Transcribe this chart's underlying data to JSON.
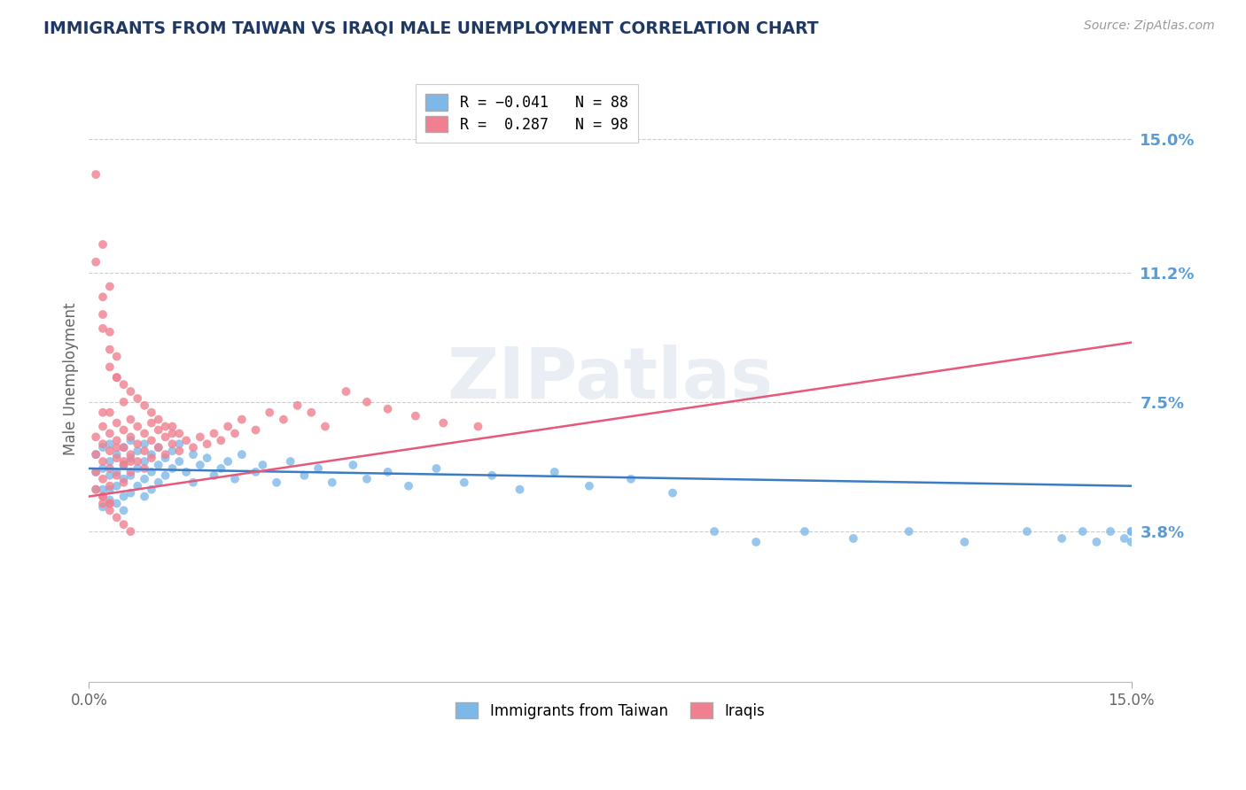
{
  "title": "IMMIGRANTS FROM TAIWAN VS IRAQI MALE UNEMPLOYMENT CORRELATION CHART",
  "source_text": "Source: ZipAtlas.com",
  "ylabel": "Male Unemployment",
  "ytick_positions": [
    0.038,
    0.075,
    0.112,
    0.15
  ],
  "ytick_labels": [
    "3.8%",
    "7.5%",
    "11.2%",
    "15.0%"
  ],
  "xlim": [
    0.0,
    0.15
  ],
  "ylim": [
    -0.005,
    0.168
  ],
  "blue_color": "#7EB8E8",
  "pink_color": "#F08090",
  "blue_line_color": "#3B7CC4",
  "pink_line_color": "#E85878",
  "background_color": "#FFFFFF",
  "grid_color": "#CCCCCC",
  "axis_label_color": "#5B9BD5",
  "title_color": "#1F3864",
  "blue_line": {
    "x0": 0.0,
    "x1": 0.15,
    "y0": 0.056,
    "y1": 0.051
  },
  "pink_line": {
    "x0": 0.0,
    "x1": 0.15,
    "y0": 0.048,
    "y1": 0.092
  },
  "blue_scatter_x": [
    0.001,
    0.001,
    0.001,
    0.002,
    0.002,
    0.002,
    0.002,
    0.003,
    0.003,
    0.003,
    0.003,
    0.003,
    0.004,
    0.004,
    0.004,
    0.004,
    0.005,
    0.005,
    0.005,
    0.005,
    0.005,
    0.006,
    0.006,
    0.006,
    0.006,
    0.007,
    0.007,
    0.007,
    0.008,
    0.008,
    0.008,
    0.008,
    0.009,
    0.009,
    0.009,
    0.01,
    0.01,
    0.01,
    0.011,
    0.011,
    0.012,
    0.012,
    0.013,
    0.013,
    0.014,
    0.015,
    0.015,
    0.016,
    0.017,
    0.018,
    0.019,
    0.02,
    0.021,
    0.022,
    0.024,
    0.025,
    0.027,
    0.029,
    0.031,
    0.033,
    0.035,
    0.038,
    0.04,
    0.043,
    0.046,
    0.05,
    0.054,
    0.058,
    0.062,
    0.067,
    0.072,
    0.078,
    0.084,
    0.09,
    0.096,
    0.103,
    0.11,
    0.118,
    0.126,
    0.135,
    0.14,
    0.143,
    0.145,
    0.147,
    0.149,
    0.15,
    0.15,
    0.15
  ],
  "blue_scatter_y": [
    0.06,
    0.055,
    0.05,
    0.062,
    0.056,
    0.05,
    0.045,
    0.058,
    0.054,
    0.05,
    0.063,
    0.047,
    0.06,
    0.055,
    0.051,
    0.046,
    0.062,
    0.057,
    0.053,
    0.048,
    0.044,
    0.064,
    0.059,
    0.054,
    0.049,
    0.061,
    0.056,
    0.051,
    0.063,
    0.058,
    0.053,
    0.048,
    0.06,
    0.055,
    0.05,
    0.062,
    0.057,
    0.052,
    0.059,
    0.054,
    0.061,
    0.056,
    0.063,
    0.058,
    0.055,
    0.06,
    0.052,
    0.057,
    0.059,
    0.054,
    0.056,
    0.058,
    0.053,
    0.06,
    0.055,
    0.057,
    0.052,
    0.058,
    0.054,
    0.056,
    0.052,
    0.057,
    0.053,
    0.055,
    0.051,
    0.056,
    0.052,
    0.054,
    0.05,
    0.055,
    0.051,
    0.053,
    0.049,
    0.038,
    0.035,
    0.038,
    0.036,
    0.038,
    0.035,
    0.038,
    0.036,
    0.038,
    0.035,
    0.038,
    0.036,
    0.038,
    0.035,
    0.038
  ],
  "pink_scatter_x": [
    0.001,
    0.001,
    0.001,
    0.001,
    0.002,
    0.002,
    0.002,
    0.002,
    0.002,
    0.002,
    0.003,
    0.003,
    0.003,
    0.003,
    0.003,
    0.004,
    0.004,
    0.004,
    0.004,
    0.005,
    0.005,
    0.005,
    0.005,
    0.006,
    0.006,
    0.006,
    0.006,
    0.007,
    0.007,
    0.007,
    0.008,
    0.008,
    0.008,
    0.009,
    0.009,
    0.009,
    0.01,
    0.01,
    0.011,
    0.011,
    0.012,
    0.012,
    0.013,
    0.013,
    0.014,
    0.015,
    0.016,
    0.017,
    0.018,
    0.019,
    0.02,
    0.021,
    0.022,
    0.024,
    0.026,
    0.028,
    0.03,
    0.032,
    0.034,
    0.037,
    0.04,
    0.043,
    0.047,
    0.051,
    0.056,
    0.001,
    0.002,
    0.002,
    0.003,
    0.003,
    0.003,
    0.004,
    0.004,
    0.005,
    0.005,
    0.006,
    0.007,
    0.008,
    0.009,
    0.01,
    0.011,
    0.012,
    0.002,
    0.003,
    0.004,
    0.005,
    0.006,
    0.002,
    0.003,
    0.002,
    0.002,
    0.003,
    0.004,
    0.005,
    0.003,
    0.004,
    0.006,
    0.001
  ],
  "pink_scatter_y": [
    0.065,
    0.06,
    0.055,
    0.05,
    0.068,
    0.063,
    0.058,
    0.053,
    0.048,
    0.072,
    0.066,
    0.061,
    0.056,
    0.051,
    0.046,
    0.069,
    0.064,
    0.059,
    0.054,
    0.067,
    0.062,
    0.057,
    0.052,
    0.07,
    0.065,
    0.06,
    0.055,
    0.068,
    0.063,
    0.058,
    0.066,
    0.061,
    0.056,
    0.069,
    0.064,
    0.059,
    0.067,
    0.062,
    0.065,
    0.06,
    0.068,
    0.063,
    0.066,
    0.061,
    0.064,
    0.062,
    0.065,
    0.063,
    0.066,
    0.064,
    0.068,
    0.066,
    0.07,
    0.067,
    0.072,
    0.07,
    0.074,
    0.072,
    0.068,
    0.078,
    0.075,
    0.073,
    0.071,
    0.069,
    0.068,
    0.14,
    0.12,
    0.105,
    0.095,
    0.09,
    0.085,
    0.088,
    0.082,
    0.08,
    0.075,
    0.078,
    0.076,
    0.074,
    0.072,
    0.07,
    0.068,
    0.066,
    0.046,
    0.044,
    0.042,
    0.04,
    0.038,
    0.048,
    0.046,
    0.096,
    0.1,
    0.072,
    0.062,
    0.058,
    0.108,
    0.082,
    0.058,
    0.115
  ]
}
